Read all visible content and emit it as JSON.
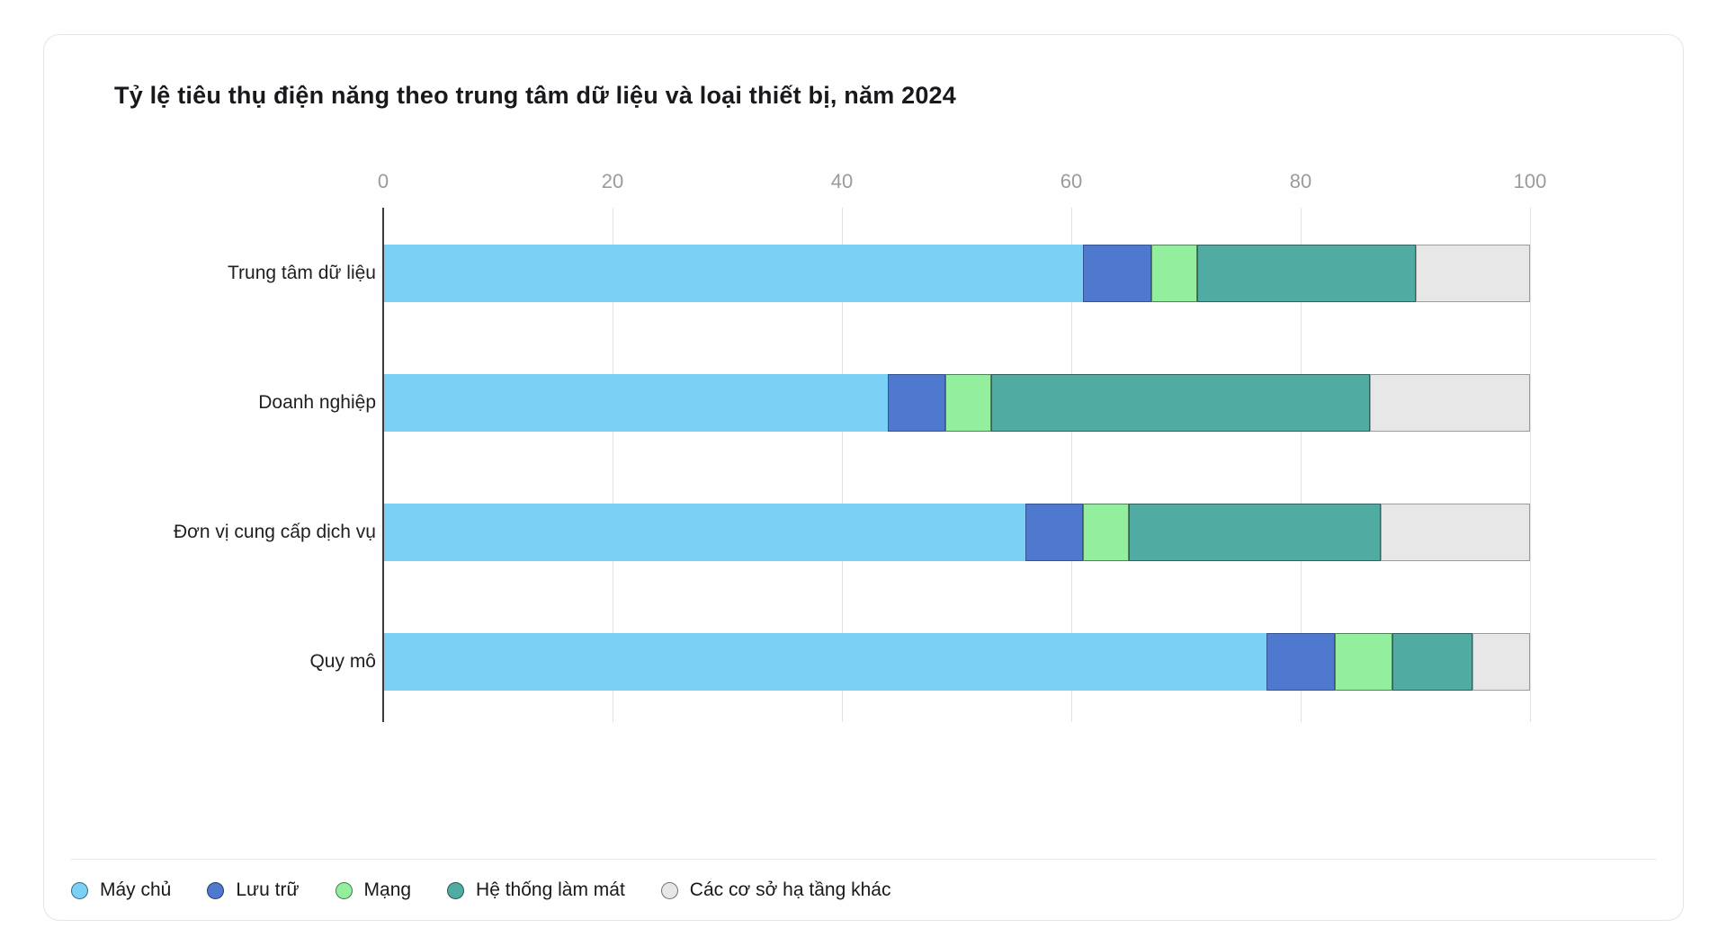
{
  "chart_data": {
    "type": "bar",
    "orientation": "horizontal",
    "stacked": true,
    "title": "Tỷ lệ tiêu thụ điện năng theo trung tâm dữ liệu và loại thiết bị, năm 2024",
    "categories": [
      "Trung tâm dữ liệu",
      "Doanh nghiệp",
      "Đơn vị cung cấp dịch vụ",
      "Quy mô"
    ],
    "series": [
      {
        "name": "Máy chủ",
        "color": "#7BD0F5",
        "stroke": "none",
        "values": [
          61,
          44,
          56,
          77
        ]
      },
      {
        "name": "Lưu trữ",
        "color": "#4E79CE",
        "stroke": "rgba(0,0,0,0.30)",
        "values": [
          6,
          5,
          5,
          6
        ]
      },
      {
        "name": "Mạng",
        "color": "#93EE9E",
        "stroke": "rgba(0,0,0,0.45)",
        "values": [
          4,
          4,
          4,
          5
        ]
      },
      {
        "name": "Hệ thống làm mát",
        "color": "#50ABA3",
        "stroke": "rgba(20,40,40,0.55)",
        "values": [
          19,
          33,
          22,
          7
        ]
      },
      {
        "name": "Các cơ sở hạ tầng khác",
        "color": "#E7E7E7",
        "stroke": "#9b9b9b",
        "values": [
          10,
          14,
          13,
          5
        ]
      }
    ],
    "x_ticks": [
      0,
      20,
      40,
      60,
      80,
      100
    ],
    "xlim": [
      0,
      100
    ],
    "grid": true,
    "legend_position": "bottom",
    "colors": {
      "axis_line": "#3a3a3a",
      "grid_line": "#e1e1e1",
      "tick_label": "#9b9b9b",
      "category_label": "#1d1f22"
    }
  }
}
